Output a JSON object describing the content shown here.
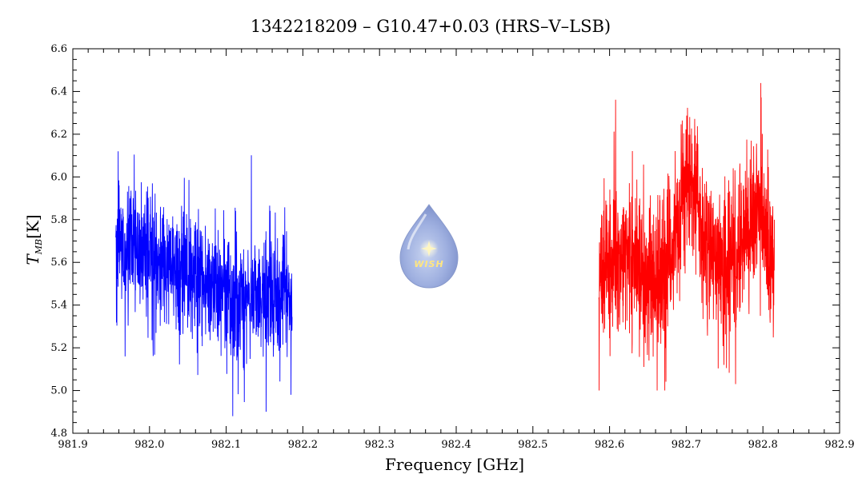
{
  "chart_data": {
    "type": "line",
    "title": "1342218209 – G10.47+0.03 (HRS–V–LSB)",
    "xlabel": "Frequency [GHz]",
    "ylabel_main": "T",
    "ylabel_sub": "MB",
    "ylabel_unit": "[K]",
    "xlim": [
      981.9,
      982.9
    ],
    "ylim": [
      4.8,
      6.6
    ],
    "xticks": [
      "981.9",
      "982.0",
      "982.1",
      "982.2",
      "982.3",
      "982.4",
      "982.5",
      "982.6",
      "982.7",
      "982.8",
      "982.9"
    ],
    "yticks": [
      "4.8",
      "5.0",
      "5.2",
      "5.4",
      "5.6",
      "5.8",
      "6.0",
      "6.2",
      "6.4",
      "6.6"
    ],
    "grid": false,
    "series": [
      {
        "color": "#0000ff",
        "x_range": [
          981.956,
          982.186
        ],
        "points": 1100,
        "mean_start": 5.68,
        "mean_end": 5.44,
        "noise_sd": 0.16,
        "min": 4.88,
        "max": 6.17
      },
      {
        "color": "#ff0000",
        "x_range": [
          982.586,
          982.815
        ],
        "points": 1100,
        "baseline": 5.62,
        "noise_sd": 0.2,
        "min": 5.0,
        "max": 6.5
      }
    ],
    "logo_text": "WISH"
  }
}
